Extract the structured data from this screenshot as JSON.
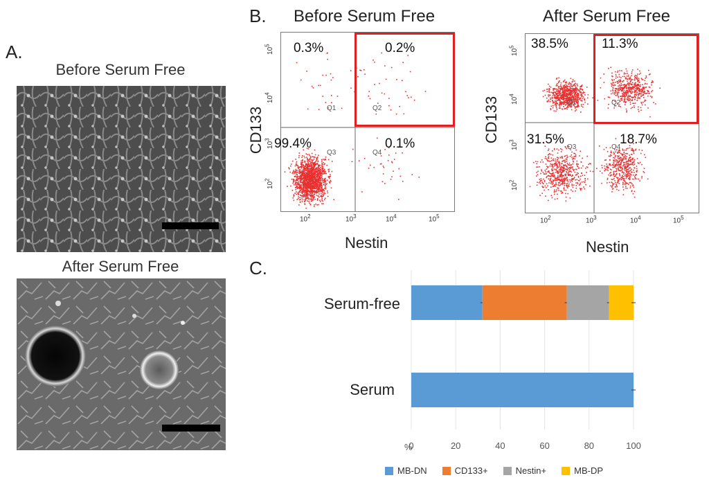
{
  "panel_a": {
    "letter": "A.",
    "top_title": "Before Serum Free",
    "bottom_title": "After Serum Free"
  },
  "panel_b": {
    "letter": "B.",
    "plots": [
      {
        "title": "Before Serum Free",
        "xlabel": "Nestin",
        "ylabel": "CD133",
        "quadrants": {
          "q1": "0.3%",
          "q2": "0.2%",
          "q3": "99.4%",
          "q4": "0.1%"
        },
        "qnames": {
          "q1": "Q1",
          "q2": "Q2",
          "q3": "Q3",
          "q4": "Q4"
        }
      },
      {
        "title": "After Serum Free",
        "xlabel": "Nestin",
        "ylabel": "CD133",
        "quadrants": {
          "q1": "38.5%",
          "q2": "11.3%",
          "q3": "31.5%",
          "q4": "18.7%"
        },
        "qnames": {
          "q1": "Q1",
          "q2": "Q2",
          "q3": "Q3",
          "q4": "Q4"
        }
      }
    ],
    "x_ticks": [
      "10",
      "10",
      "10",
      "10"
    ],
    "x_exps": [
      "2",
      "3",
      "4",
      "5"
    ],
    "y_ticks": [
      "10",
      "10",
      "10",
      "10"
    ],
    "y_exps": [
      "5",
      "4",
      "3",
      "2"
    ],
    "highlight_color": "#e02020",
    "dot_color": "#e83030"
  },
  "panel_c": {
    "letter": "C.",
    "chart_data": {
      "type": "bar",
      "orientation": "horizontal",
      "stacked": true,
      "categories": [
        "Serum-free",
        "Serum"
      ],
      "series": [
        {
          "name": "MB-DN",
          "color": "#5b9bd5",
          "values": [
            32,
            100
          ]
        },
        {
          "name": "CD133+",
          "color": "#ed7d31",
          "values": [
            38,
            0
          ]
        },
        {
          "name": "Nestin+",
          "color": "#a5a5a5",
          "values": [
            19,
            0
          ]
        },
        {
          "name": "MB-DP",
          "color": "#ffc000",
          "values": [
            11,
            0
          ]
        }
      ],
      "xlabel": "%",
      "xlim": [
        0,
        100
      ],
      "x_ticks": [
        "0",
        "20",
        "40",
        "60",
        "80",
        "100"
      ],
      "legend_position": "bottom"
    }
  }
}
